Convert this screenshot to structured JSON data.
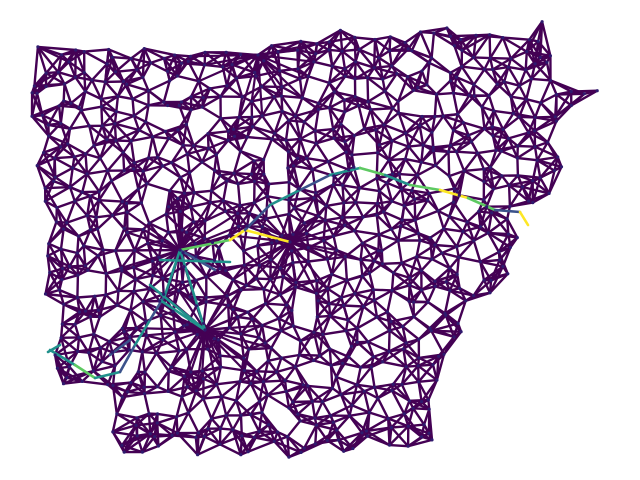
{
  "figure": {
    "description": "",
    "palette": {
      "background": "#ffffff",
      "base_edge": "#440154",
      "node": "#2e1a6e",
      "mid_edge": "#3b528b",
      "teal_edge": "#21918c",
      "green_edge": "#5ec962",
      "yellow_edge": "#fde725"
    },
    "colormap": "viridis",
    "node_icon": "dot-icon"
  }
}
